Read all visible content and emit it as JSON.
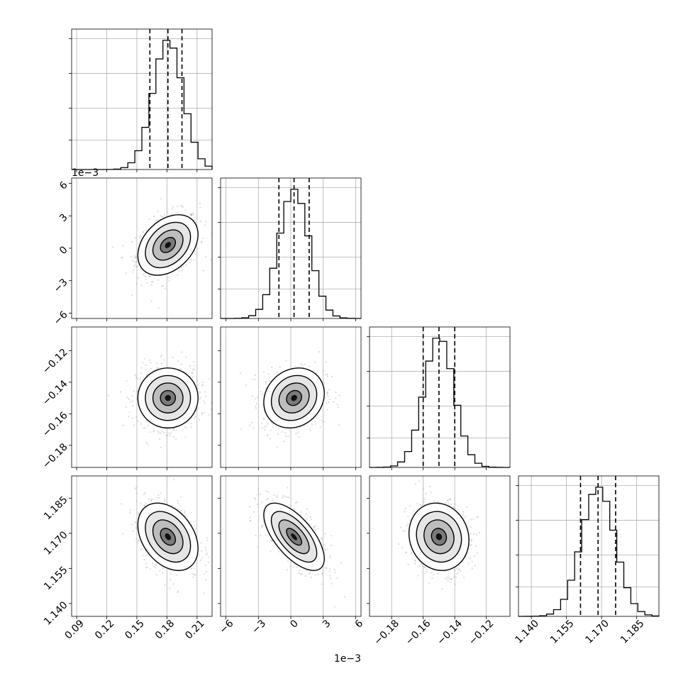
{
  "chart_data": {
    "type": "corner",
    "n_params": 4,
    "grid": true,
    "quantiles": [
      0.16,
      0.5,
      0.84
    ],
    "params": [
      {
        "range": [
          0.085,
          0.225
        ],
        "ticks": [
          0.09,
          0.12,
          0.15,
          0.18,
          0.21
        ],
        "tick_labels": [
          "0.09",
          "0.12",
          "0.15",
          "0.18",
          "0.21"
        ],
        "median": 0.181,
        "sigma": 0.015,
        "quantile_values": [
          0.163,
          0.181,
          0.195
        ]
      },
      {
        "range": [
          -0.0065,
          0.0065
        ],
        "ticks": [
          -0.006,
          -0.003,
          0,
          0.003,
          0.006
        ],
        "tick_labels": [
          "−6",
          "−3",
          "0",
          "3",
          "6"
        ],
        "offset_label": "1e−3",
        "median": 0.0003,
        "sigma": 0.0014,
        "quantile_values": [
          -0.0011,
          0.0003,
          0.0017
        ]
      },
      {
        "range": [
          -0.194,
          -0.105
        ],
        "ticks": [
          -0.18,
          -0.16,
          -0.14,
          -0.12
        ],
        "tick_labels": [
          "−0.18",
          "−0.16",
          "−0.14",
          "−0.12"
        ],
        "median": -0.15,
        "sigma": 0.0095,
        "quantile_values": [
          -0.16,
          -0.15,
          -0.14
        ]
      },
      {
        "range": [
          1.1345,
          1.1945
        ],
        "ticks": [
          1.14,
          1.155,
          1.17,
          1.185
        ],
        "tick_labels": [
          "1.140",
          "1.155",
          "1.170",
          "1.185"
        ],
        "median": 1.1685,
        "sigma": 0.0072,
        "quantile_values": [
          1.161,
          1.1685,
          1.176
        ]
      }
    ],
    "correlations": [
      {
        "i": 1,
        "j": 0,
        "rho": 0.35
      },
      {
        "i": 2,
        "j": 0,
        "rho": 0.0
      },
      {
        "i": 2,
        "j": 1,
        "rho": 0.15
      },
      {
        "i": 3,
        "j": 0,
        "rho": -0.35
      },
      {
        "i": 3,
        "j": 1,
        "rho": -0.65
      },
      {
        "i": 3,
        "j": 2,
        "rho": -0.1
      }
    ]
  }
}
